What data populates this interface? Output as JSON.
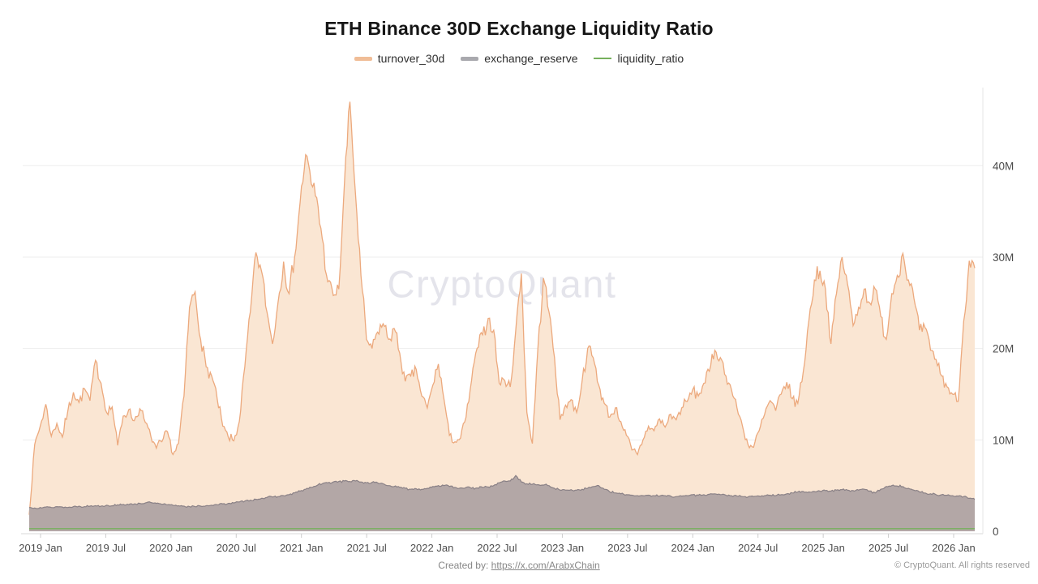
{
  "title": "ETH Binance 30D Exchange Liquidity Ratio",
  "watermark": "CryptoQuant",
  "legend": [
    {
      "label": "turnover_30d",
      "color": "#f0bd97",
      "swatch": "area"
    },
    {
      "label": "exchange_reserve",
      "color": "#a9a9ae",
      "swatch": "area"
    },
    {
      "label": "liquidity_ratio",
      "color": "#76b05c",
      "swatch": "line"
    }
  ],
  "footer": {
    "created_by_label": "Created by: ",
    "created_by_link": "https://x.com/ArabxChain",
    "copyright": "© CryptoQuant. All rights reserved"
  },
  "y_axis": {
    "labels": [
      {
        "text": "40M",
        "value": 40
      },
      {
        "text": "30M",
        "value": 30
      },
      {
        "text": "20M",
        "value": 20
      },
      {
        "text": "10M",
        "value": 10
      },
      {
        "text": "0",
        "value": 0
      }
    ]
  },
  "x_axis": {
    "labels": [
      "2019 Jan",
      "2019 Jul",
      "2020 Jan",
      "2020 Jul",
      "2021 Jan",
      "2021 Jul",
      "2022 Jan",
      "2022 Jul",
      "2023 Jan",
      "2023 Jul",
      "2024 Jan",
      "2024 Jul",
      "2025 Jan",
      "2025 Jul",
      "2026 Jan"
    ]
  },
  "chart_data": {
    "type": "area",
    "title": "ETH Binance 30D Exchange Liquidity Ratio",
    "x_start": "2018-12",
    "x_end": "2026-02",
    "x_step": "half-month",
    "values_unit": "millions",
    "ylim_M": [
      0,
      48
    ],
    "grid": "horizontal",
    "legend_position": "top",
    "series": [
      {
        "name": "turnover_30d",
        "stroke": "#eca97d",
        "fill": "#fae6d3",
        "values_M": [
          1.8,
          9.5,
          11.5,
          13.9,
          10.4,
          11.8,
          10.3,
          13.2,
          15.2,
          14.1,
          15.6,
          14.3,
          18.7,
          16.2,
          13.0,
          13.6,
          9.4,
          12.6,
          13.3,
          12.1,
          13.4,
          11.9,
          10.4,
          9.1,
          9.8,
          10.9,
          8.4,
          9.6,
          14.8,
          24.5,
          26.2,
          21.0,
          18.0,
          17.0,
          14.5,
          11.5,
          10.3,
          9.9,
          12.0,
          18.0,
          24.0,
          30.5,
          28.5,
          24.0,
          20.5,
          25.0,
          29.5,
          26.0,
          30.0,
          36.0,
          41.2,
          38.0,
          36.5,
          32.0,
          27.3,
          25.8,
          26.5,
          38.0,
          47.0,
          37.0,
          28.0,
          21.0,
          20.0,
          21.8,
          22.7,
          21.0,
          22.2,
          19.5,
          16.4,
          17.0,
          17.7,
          14.8,
          13.5,
          16.0,
          18.3,
          14.5,
          10.5,
          9.8,
          10.2,
          12.5,
          16.5,
          20.0,
          21.5,
          23.3,
          22.0,
          16.2,
          16.5,
          15.8,
          22.0,
          28.2,
          13.0,
          9.6,
          20.0,
          27.7,
          24.0,
          19.0,
          12.2,
          13.8,
          14.4,
          13.0,
          16.5,
          20.0,
          19.0,
          16.0,
          14.0,
          12.5,
          13.5,
          12.0,
          10.5,
          8.9,
          8.4,
          10.0,
          11.5,
          11.0,
          12.3,
          11.4,
          12.8,
          12.2,
          13.5,
          14.2,
          15.5,
          14.8,
          16.2,
          17.5,
          19.8,
          19.0,
          17.0,
          15.5,
          13.5,
          11.5,
          9.5,
          9.2,
          11.0,
          12.8,
          14.3,
          13.2,
          15.0,
          16.3,
          14.5,
          14.0,
          17.5,
          23.0,
          27.5,
          28.5,
          26.5,
          20.5,
          26.0,
          30.0,
          27.0,
          22.5,
          24.5,
          26.5,
          25.0,
          26.5,
          23.5,
          21.0,
          26.0,
          28.0,
          30.4,
          27.5,
          25.5,
          22.0,
          22.3,
          19.8,
          18.8,
          17.0,
          15.8,
          15.0,
          14.2,
          23.0,
          29.6,
          28.8
        ]
      },
      {
        "name": "exchange_reserve",
        "stroke": "#8a8186",
        "fill": "#b3a7a6",
        "values_M": [
          2.6,
          2.55,
          2.6,
          2.65,
          2.6,
          2.7,
          2.65,
          2.6,
          2.7,
          2.75,
          2.7,
          2.75,
          2.8,
          2.75,
          2.85,
          2.8,
          2.9,
          2.95,
          2.9,
          3.0,
          3.05,
          3.1,
          3.15,
          3.05,
          2.95,
          2.9,
          2.85,
          2.8,
          2.75,
          2.7,
          2.7,
          2.75,
          2.8,
          2.85,
          2.9,
          3.0,
          3.05,
          3.1,
          3.2,
          3.3,
          3.4,
          3.5,
          3.6,
          3.7,
          3.75,
          3.8,
          3.9,
          4.0,
          4.2,
          4.4,
          4.6,
          4.8,
          5.0,
          5.2,
          5.3,
          5.4,
          5.45,
          5.5,
          5.45,
          5.5,
          5.4,
          5.3,
          5.35,
          5.3,
          5.2,
          5.0,
          4.9,
          4.8,
          4.7,
          4.6,
          4.65,
          4.6,
          4.7,
          4.9,
          5.0,
          5.0,
          4.9,
          4.8,
          4.75,
          4.8,
          4.7,
          4.75,
          4.8,
          4.85,
          5.0,
          5.3,
          5.5,
          5.5,
          6.1,
          5.4,
          5.2,
          5.15,
          5.1,
          5.05,
          5.0,
          4.7,
          4.5,
          4.5,
          4.55,
          4.5,
          4.6,
          4.7,
          4.9,
          5.0,
          4.6,
          4.3,
          4.2,
          4.1,
          4.0,
          3.95,
          3.9,
          3.9,
          3.95,
          3.9,
          3.85,
          3.9,
          3.85,
          3.8,
          3.85,
          3.9,
          4.0,
          3.95,
          4.0,
          4.05,
          4.1,
          4.0,
          3.95,
          3.9,
          3.85,
          3.8,
          3.75,
          3.8,
          3.85,
          3.9,
          3.95,
          3.9,
          4.0,
          4.1,
          4.2,
          4.3,
          4.35,
          4.3,
          4.35,
          4.4,
          4.45,
          4.4,
          4.5,
          4.55,
          4.5,
          4.45,
          4.5,
          4.6,
          4.4,
          4.2,
          4.6,
          4.9,
          5.0,
          4.95,
          4.9,
          4.7,
          4.5,
          4.3,
          4.2,
          4.1,
          4.0,
          4.0,
          3.95,
          3.9,
          3.85,
          3.8,
          3.6,
          3.5
        ]
      },
      {
        "name": "liquidity_ratio",
        "stroke": "#76b05c",
        "note": "appears as a flat line just above zero at this axis scale",
        "display_value_M": 0.28
      }
    ]
  }
}
